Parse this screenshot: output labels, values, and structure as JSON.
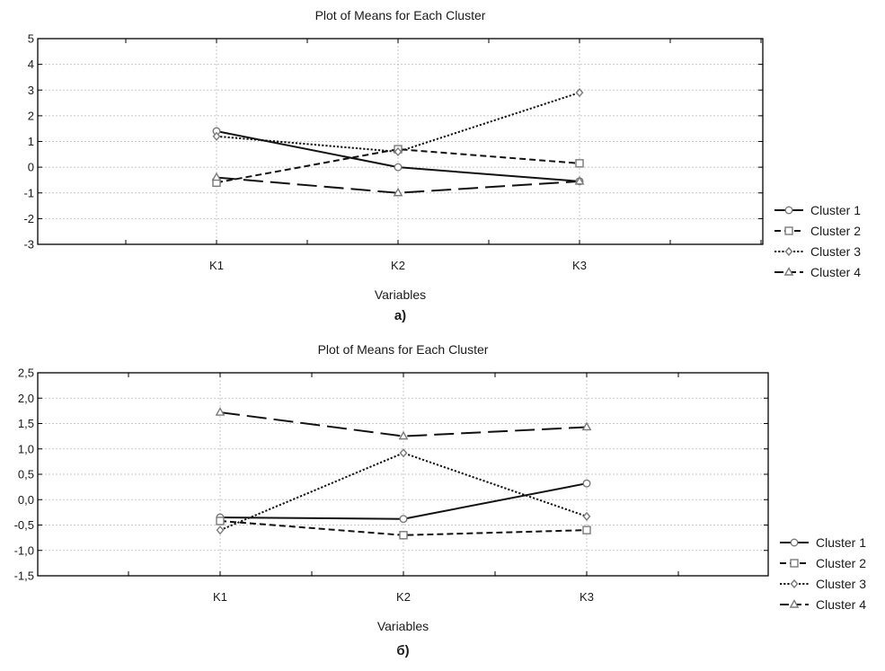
{
  "chart_data": [
    {
      "type": "line",
      "title": "Plot of Means for Each Cluster",
      "xlabel": "Variables",
      "ylabel": "",
      "panel_label": "a)",
      "categories": [
        "K1",
        "K2",
        "K3"
      ],
      "ylim": [
        -3,
        5
      ],
      "yticks": [
        5,
        4,
        3,
        2,
        1,
        0,
        -1,
        -2,
        -3
      ],
      "ytick_labels": [
        "5",
        "4",
        "3",
        "2",
        "1",
        "0",
        "-1",
        "-2",
        "-3"
      ],
      "grid": true,
      "legend_position": "right",
      "series": [
        {
          "name": "Cluster 1",
          "values": [
            1.4,
            0.0,
            -0.55
          ],
          "marker": "circle",
          "dash": "solid"
        },
        {
          "name": "Cluster 2",
          "values": [
            -0.6,
            0.7,
            0.15
          ],
          "marker": "square",
          "dash": "dashed"
        },
        {
          "name": "Cluster 3",
          "values": [
            1.2,
            0.6,
            2.9
          ],
          "marker": "diamond",
          "dash": "dotted"
        },
        {
          "name": "Cluster 4",
          "values": [
            -0.4,
            -1.0,
            -0.55
          ],
          "marker": "triangle",
          "dash": "longdash"
        }
      ]
    },
    {
      "type": "line",
      "title": "Plot of Means for Each Cluster",
      "xlabel": "Variables",
      "ylabel": "",
      "panel_label": "б)",
      "categories": [
        "K1",
        "K2",
        "K3"
      ],
      "ylim": [
        -1.5,
        2.5
      ],
      "yticks": [
        2.5,
        2.0,
        1.5,
        1.0,
        0.5,
        0.0,
        -0.5,
        -1.0,
        -1.5
      ],
      "ytick_labels": [
        "2,5",
        "2,0",
        "1,5",
        "1,0",
        "0,5",
        "0,0",
        "-0,5",
        "-1,0",
        "-1,5"
      ],
      "grid": true,
      "legend_position": "right",
      "series": [
        {
          "name": "Cluster 1",
          "values": [
            -0.35,
            -0.38,
            0.32
          ],
          "marker": "circle",
          "dash": "solid"
        },
        {
          "name": "Cluster 2",
          "values": [
            -0.42,
            -0.7,
            -0.6
          ],
          "marker": "square",
          "dash": "dashed"
        },
        {
          "name": "Cluster 3",
          "values": [
            -0.6,
            0.92,
            -0.33
          ],
          "marker": "diamond",
          "dash": "dotted"
        },
        {
          "name": "Cluster 4",
          "values": [
            1.72,
            1.25,
            1.43
          ],
          "marker": "triangle",
          "dash": "longdash"
        }
      ]
    }
  ]
}
